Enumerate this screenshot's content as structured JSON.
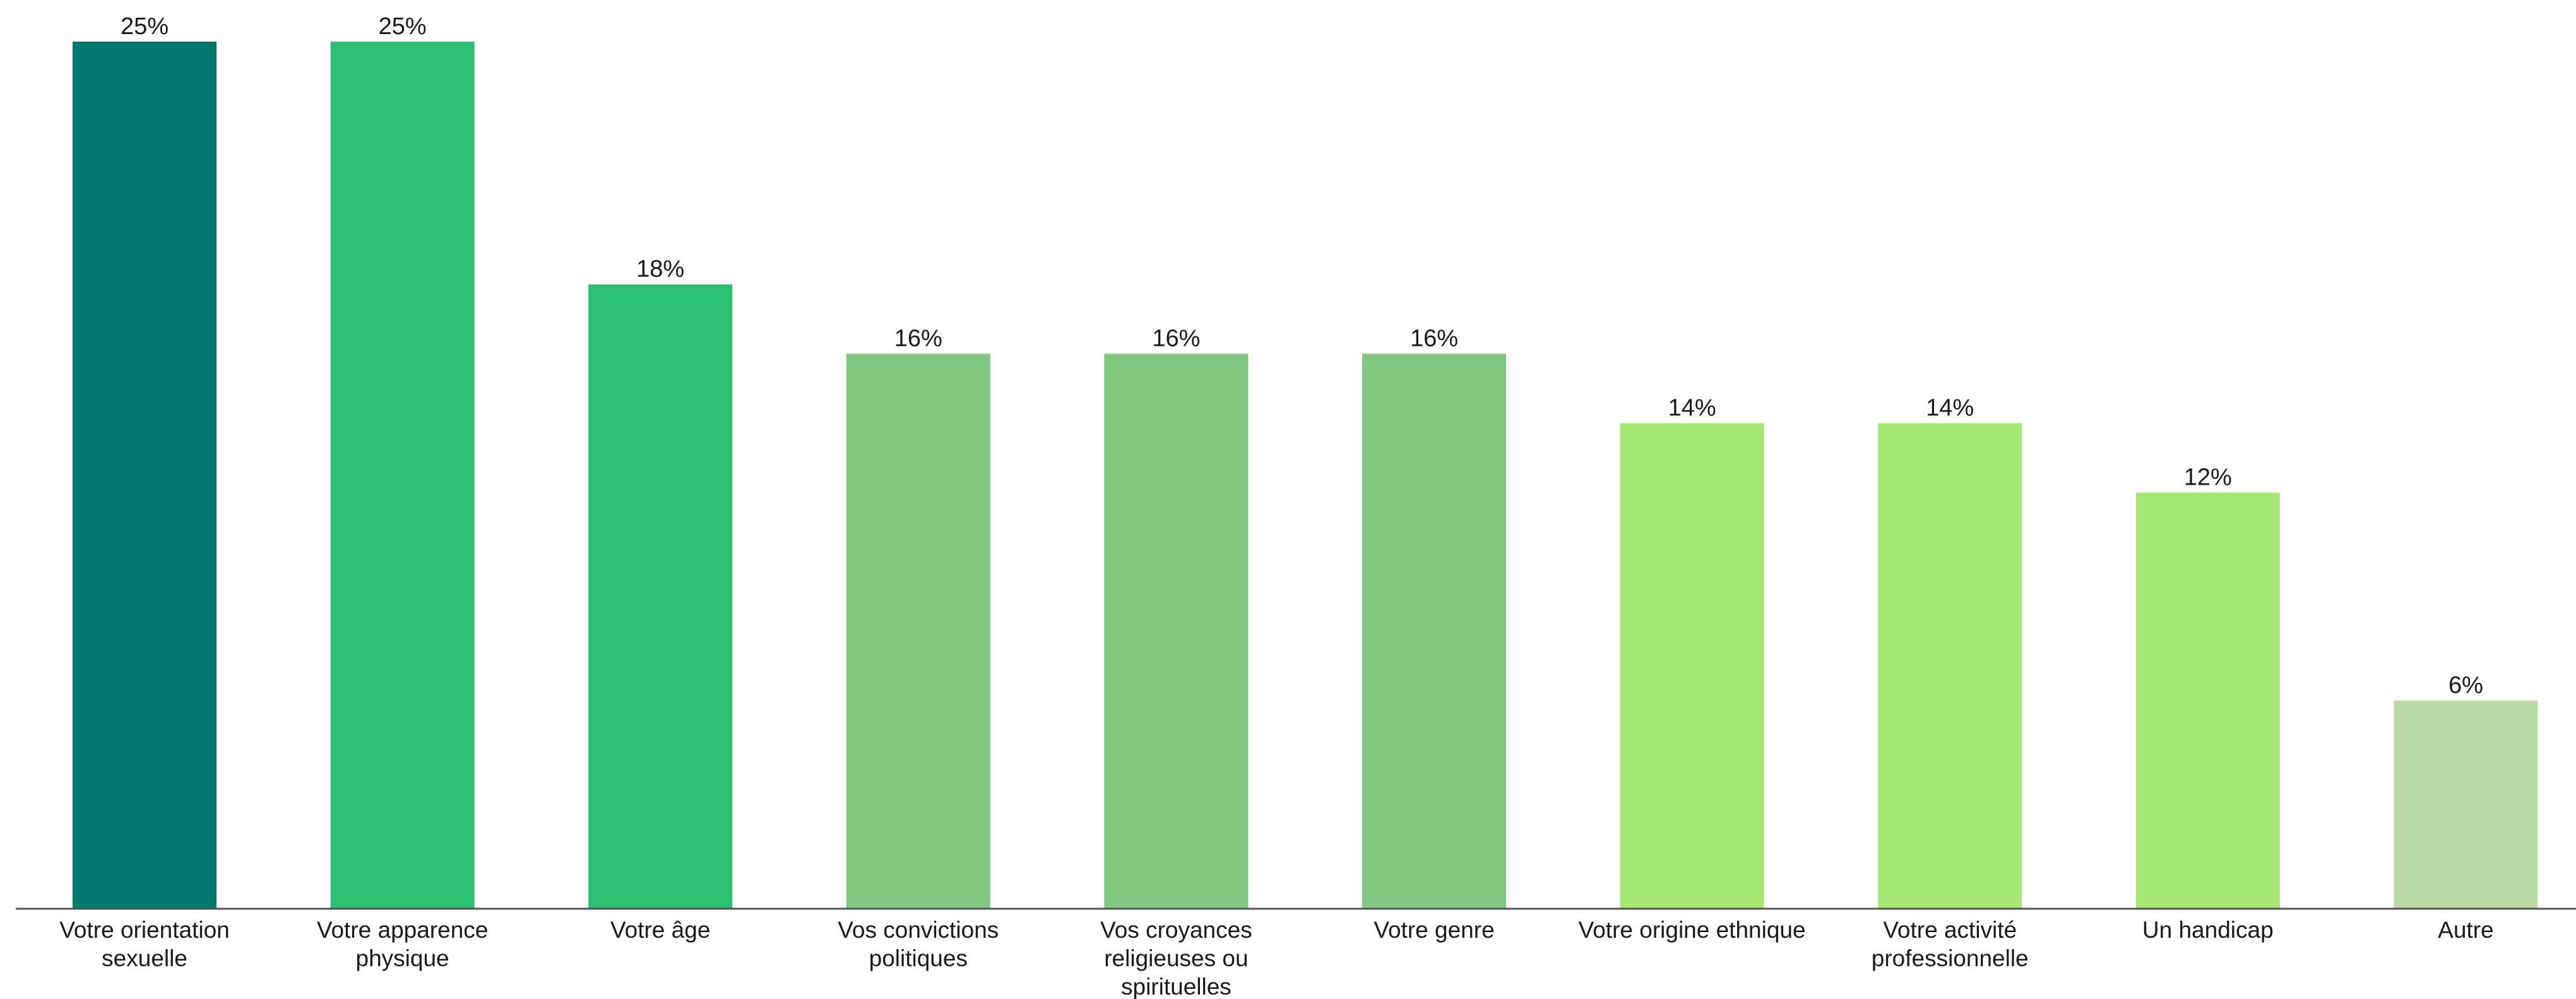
{
  "chart_data": {
    "type": "bar",
    "title": "",
    "xlabel": "",
    "ylabel": "",
    "ylim": [
      0,
      25
    ],
    "grid": false,
    "value_suffix": "%",
    "categories": [
      "Votre orientation sexuelle",
      "Votre apparence physique",
      "Votre âge",
      "Vos convictions politiques",
      "Vos croyances religieuses ou spirituelles",
      "Votre genre",
      "Votre origine ethnique",
      "Votre activité professionnelle",
      "Un handicap",
      "Autre"
    ],
    "category_lines": [
      [
        "Votre orientation",
        "sexuelle"
      ],
      [
        "Votre apparence",
        "physique"
      ],
      [
        "Votre âge"
      ],
      [
        "Vos convictions",
        "politiques"
      ],
      [
        "Vos croyances",
        "religieuses ou",
        "spirituelles"
      ],
      [
        "Votre genre"
      ],
      [
        "Votre origine ethnique"
      ],
      [
        "Votre activité",
        "professionnelle"
      ],
      [
        "Un handicap"
      ],
      [
        "Autre"
      ]
    ],
    "values": [
      25,
      25,
      18,
      16,
      16,
      16,
      14,
      14,
      12,
      6
    ],
    "value_labels": [
      "25%",
      "25%",
      "18%",
      "16%",
      "16%",
      "16%",
      "14%",
      "14%",
      "12%",
      "6%"
    ],
    "colors": [
      "#007A6E",
      "#2DBF73",
      "#2DBF73",
      "#80C882",
      "#80C882",
      "#80C882",
      "#A6E672",
      "#A6E672",
      "#A6E672",
      "#B9DBA3"
    ]
  }
}
